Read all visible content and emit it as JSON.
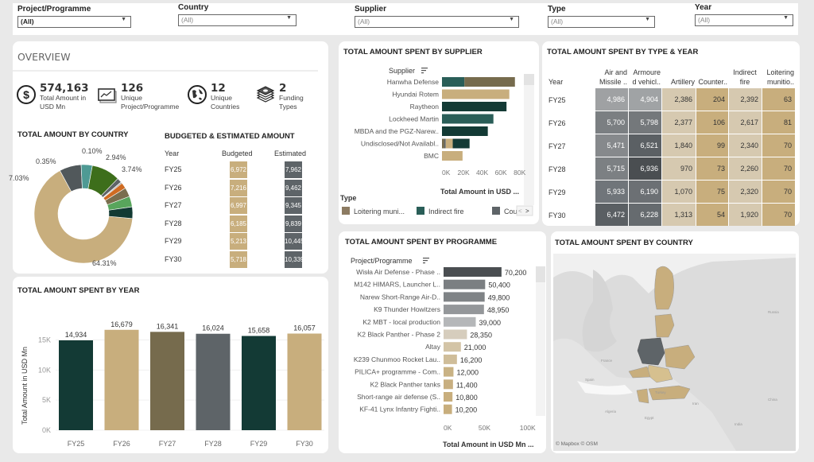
{
  "filters": [
    {
      "label": "Project/Programme",
      "value": "(All)"
    },
    {
      "label": "Country",
      "value": "(All)"
    },
    {
      "label": "Supplier",
      "value": "(All)"
    },
    {
      "label": "Type",
      "value": "(All)"
    },
    {
      "label": "Year",
      "value": "(All)"
    }
  ],
  "overview": {
    "title": "OVERVIEW",
    "kpis": [
      {
        "icon": "dollar-icon",
        "value": "574,163",
        "label1": "Total Amount in",
        "label2": "USD Mn"
      },
      {
        "icon": "chart-icon",
        "value": "126",
        "label1": "Unique",
        "label2": "Project/Programme"
      },
      {
        "icon": "globe-icon",
        "value": "12",
        "label1": "Unique",
        "label2": "Countries"
      },
      {
        "icon": "money-stack-icon",
        "value": "2",
        "label1": "Funding",
        "label2": "Types"
      }
    ]
  },
  "donut": {
    "title": "TOTAL AMOUNT BY COUNTRY",
    "labels": {
      "l1": "0.10%",
      "l2": "0.35%",
      "l3": "2.94%",
      "l4": "3.74%",
      "l5": "7.03%",
      "l6": "64.31%"
    }
  },
  "budget": {
    "title": "BUDGETED & ESTIMATED AMOUNT",
    "headers": {
      "year": "Year",
      "budgeted": "Budgeted",
      "estimated": "Estimated"
    },
    "rows": [
      {
        "year": "FY25",
        "budgeted": "6,972",
        "estimated": "7,962"
      },
      {
        "year": "FY26",
        "budgeted": "7,216",
        "estimated": "9,462"
      },
      {
        "year": "FY27",
        "budgeted": "6,997",
        "estimated": "9,345"
      },
      {
        "year": "FY28",
        "budgeted": "6,185",
        "estimated": "9,839"
      },
      {
        "year": "FY29",
        "budgeted": "5,213",
        "estimated": "10,445"
      },
      {
        "year": "FY30",
        "budgeted": "5,718",
        "estimated": "10,339"
      }
    ]
  },
  "chart_data": [
    {
      "type": "pie",
      "title": "TOTAL AMOUNT BY COUNTRY",
      "slices": [
        {
          "value": 64.31,
          "label": "64.31%",
          "color": "#c8ae7d"
        },
        {
          "value": 7.03,
          "label": "7.03%",
          "color": "#51585b"
        },
        {
          "value": 3.6,
          "label": "",
          "color": "#4e9a94"
        },
        {
          "value": 9.2,
          "label": "",
          "color": "#3d6e1b"
        },
        {
          "value": 1.5,
          "label": "",
          "color": "#5e6468"
        },
        {
          "value": 0.1,
          "label": "0.10%",
          "color": "#a9cbe8"
        },
        {
          "value": 0.35,
          "label": "0.35%",
          "color": "#6b6b6b"
        },
        {
          "value": 1.9,
          "label": "",
          "color": "#cf6b22"
        },
        {
          "value": 2.94,
          "label": "2.94%",
          "color": "#7a6e4e"
        },
        {
          "value": 3.4,
          "label": "",
          "color": "#58a55c"
        },
        {
          "value": 3.74,
          "label": "3.74%",
          "color": "#123a33"
        }
      ]
    },
    {
      "type": "bar",
      "title": "TOTAL AMOUNT SPENT BY YEAR",
      "categories": [
        "FY25",
        "FY26",
        "FY27",
        "FY28",
        "FY29",
        "FY30"
      ],
      "values": [
        14934,
        16679,
        16341,
        16024,
        15658,
        16057
      ],
      "value_labels": [
        "14,934",
        "16,679",
        "16,341",
        "16,024",
        "15,658",
        "16,057"
      ],
      "colors": [
        "#133a35",
        "#c8ae7d",
        "#766b4d",
        "#5e6468",
        "#133a35",
        "#c8ae7d"
      ],
      "ylabel": "Total Amount in USD Mn",
      "yticks": [
        "0K",
        "5K",
        "10K",
        "15K"
      ],
      "ylim": [
        0,
        18500
      ]
    },
    {
      "type": "bar",
      "title": "TOTAL AMOUNT SPENT BY SUPPLIER",
      "orientation": "horizontal-stacked",
      "axis_header": "Supplier",
      "xlabel": "Total Amount in USD ...",
      "xticks": [
        "0K",
        "20K",
        "40K",
        "60K",
        "80K"
      ],
      "xlim": [
        0,
        85000
      ],
      "categories": [
        "Hanwha Defense",
        "Hyundai Rotem",
        "Raytheon",
        "Lockheed Martin",
        "MBDA and the PGZ-Narew..",
        "Undisclosed/Not Availabl..",
        "BMC"
      ],
      "segments": [
        [
          {
            "value": 24000,
            "color": "#2a5e58"
          },
          {
            "value": 54000,
            "color": "#766b4d"
          }
        ],
        [
          {
            "value": 72000,
            "color": "#c8ae7d"
          }
        ],
        [
          {
            "value": 69000,
            "color": "#133a35"
          }
        ],
        [
          {
            "value": 55000,
            "color": "#2a5e58"
          }
        ],
        [
          {
            "value": 49000,
            "color": "#133a35"
          }
        ],
        [
          {
            "value": 2500,
            "color": "#766b4d"
          },
          {
            "value": 1500,
            "color": "#5e6468"
          },
          {
            "value": 7500,
            "color": "#c8ae7d"
          },
          {
            "value": 18000,
            "color": "#133a35"
          }
        ],
        [
          {
            "value": 22000,
            "color": "#c8ae7d"
          }
        ]
      ],
      "legend_title": "Type",
      "legend": [
        {
          "label": "Loitering muni...",
          "color": "#8c7b62"
        },
        {
          "label": "Indirect fire",
          "color": "#2a5e58"
        },
        {
          "label": "Cou",
          "color": "#5e6468"
        }
      ]
    },
    {
      "type": "heatmap",
      "title": "TOTAL AMOUNT SPENT BY TYPE & YEAR",
      "row_header": "Year",
      "columns": [
        {
          "l1": "Air and",
          "l2": "Missile .."
        },
        {
          "l1": "Armoure",
          "l2": "d vehicl.."
        },
        {
          "l1": "",
          "l2": "Artillery"
        },
        {
          "l1": "",
          "l2": "Counter.."
        },
        {
          "l1": "Indirect",
          "l2": "fire"
        },
        {
          "l1": "Loitering",
          "l2": "munitio.."
        }
      ],
      "rows": [
        {
          "year": "FY25",
          "values": [
            "4,986",
            "4,904",
            "2,386",
            "204",
            "2,392",
            "63"
          ]
        },
        {
          "year": "FY26",
          "values": [
            "5,700",
            "5,798",
            "2,377",
            "106",
            "2,617",
            "81"
          ]
        },
        {
          "year": "FY27",
          "values": [
            "5,471",
            "6,521",
            "1,840",
            "99",
            "2,340",
            "70"
          ]
        },
        {
          "year": "FY28",
          "values": [
            "5,715",
            "6,936",
            "970",
            "73",
            "2,260",
            "70"
          ]
        },
        {
          "year": "FY29",
          "values": [
            "5,933",
            "6,190",
            "1,070",
            "75",
            "2,320",
            "70"
          ]
        },
        {
          "year": "FY30",
          "values": [
            "6,472",
            "6,228",
            "1,313",
            "54",
            "1,920",
            "70"
          ]
        }
      ]
    },
    {
      "type": "bar",
      "title": "TOTAL AMOUNT SPENT BY PROGRAMME",
      "orientation": "horizontal",
      "axis_header": "Project/Programme",
      "xlabel": "Total Amount in USD Mn ...",
      "xticks": [
        "0K",
        "50K",
        "100K"
      ],
      "xlim": [
        0,
        105000
      ],
      "categories": [
        "Wisła Air Defense - Phase ..",
        "M142 HIMARS, Launcher L..",
        "Narew Short-Range Air-D..",
        "K9 Thunder Howitzers",
        "K2 MBT - local production",
        "K2 Black Panther - Phase 2",
        "Altay",
        "K239 Chunmoo Rocket Lau..",
        "PILICA+ programme - Com..",
        "K2 Black Panther tanks",
        "Short-range air defense (S..",
        "KF-41 Lynx Infantry Fighti.."
      ],
      "values": [
        70200,
        50400,
        49800,
        48950,
        39000,
        28350,
        21000,
        16200,
        12000,
        11400,
        10800,
        10200
      ],
      "value_labels": [
        "70,200",
        "50,400",
        "49,800",
        "48,950",
        "39,000",
        "28,350",
        "21,000",
        "16,200",
        "12,000",
        "11,400",
        "10,800",
        "10,200"
      ]
    }
  ],
  "map": {
    "title": "TOTAL AMOUNT SPENT BY COUNTRY",
    "labels": [
      "Russia",
      "France",
      "Spain",
      "Turkey",
      "Iran",
      "China",
      "Algeria",
      "Egypt",
      "India"
    ],
    "attribution": "© Mapbox  © OSM"
  }
}
